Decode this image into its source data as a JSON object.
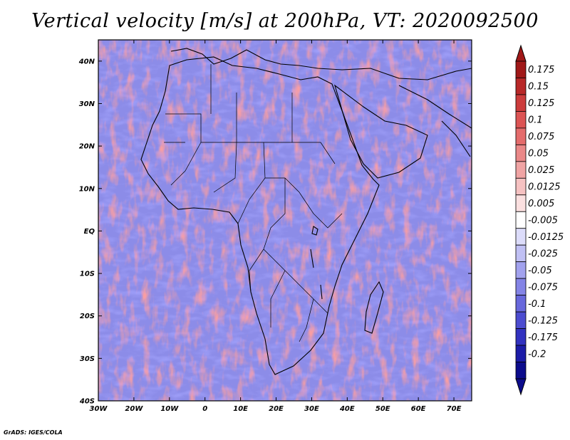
{
  "title": "Vertical velocity [m/s] at 200hPa, VT: 2020092500",
  "credit": "GrADS: IGES/COLA",
  "map": {
    "variable": "Vertical velocity",
    "units": "m/s",
    "level": "200hPa",
    "valid_time": "2020092500",
    "lon_range": [
      -30,
      75
    ],
    "lat_range": [
      -40,
      45
    ],
    "lon_ticks": [
      {
        "value": -30,
        "label": "30W"
      },
      {
        "value": -20,
        "label": "20W"
      },
      {
        "value": -10,
        "label": "10W"
      },
      {
        "value": 0,
        "label": "0"
      },
      {
        "value": 10,
        "label": "10E"
      },
      {
        "value": 20,
        "label": "20E"
      },
      {
        "value": 30,
        "label": "30E"
      },
      {
        "value": 40,
        "label": "40E"
      },
      {
        "value": 50,
        "label": "50E"
      },
      {
        "value": 60,
        "label": "60E"
      },
      {
        "value": 70,
        "label": "70E"
      }
    ],
    "lat_ticks": [
      {
        "value": 40,
        "label": "40N"
      },
      {
        "value": 30,
        "label": "30N"
      },
      {
        "value": 20,
        "label": "20N"
      },
      {
        "value": 10,
        "label": "10N"
      },
      {
        "value": 0,
        "label": "EQ"
      },
      {
        "value": -10,
        "label": "10S"
      },
      {
        "value": -20,
        "label": "20S"
      },
      {
        "value": -30,
        "label": "30S"
      },
      {
        "value": -40,
        "label": "40S"
      }
    ]
  },
  "colorbar": {
    "labels": [
      "0.175",
      "0.15",
      "0.125",
      "0.1",
      "0.075",
      "0.05",
      "0.025",
      "0.0125",
      "0.005",
      "-0.005",
      "-0.0125",
      "-0.025",
      "-0.05",
      "-0.075",
      "-0.1",
      "-0.125",
      "-0.175",
      "-0.2"
    ],
    "colors": [
      "#a01818",
      "#b82828",
      "#cc3c3c",
      "#dc5454",
      "#e46c6c",
      "#ea8888",
      "#f0a4a4",
      "#f6c2c2",
      "#fbe0e0",
      "#ffffff",
      "#dcdcfa",
      "#c0c0f4",
      "#a2a2ee",
      "#8484e6",
      "#6868dc",
      "#4c4cd0",
      "#3232c0",
      "#1c1ca8",
      "#0c0c8c"
    ],
    "top_triangle_color": "#a01818",
    "bottom_triangle_color": "#0c0c8c"
  }
}
